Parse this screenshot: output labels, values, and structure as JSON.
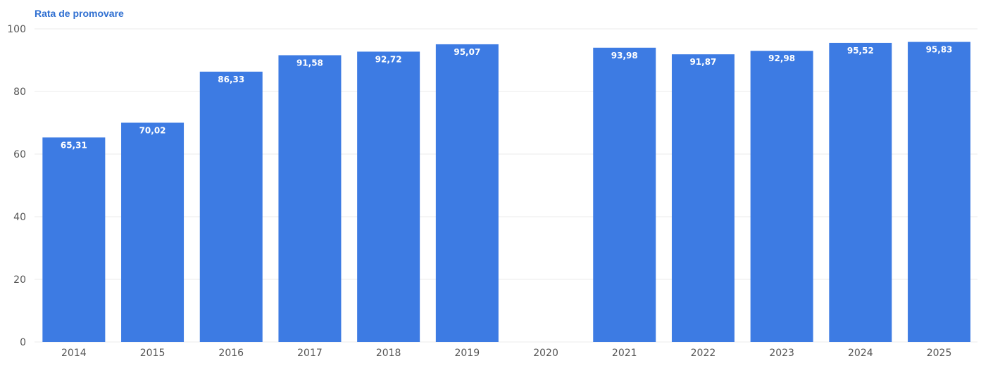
{
  "chart_data": {
    "type": "bar",
    "title": "Rata de promovare",
    "categories": [
      "2014",
      "2015",
      "2016",
      "2017",
      "2018",
      "2019",
      "2020",
      "2021",
      "2022",
      "2023",
      "2024",
      "2025"
    ],
    "values": [
      65.31,
      70.02,
      86.33,
      91.58,
      92.72,
      95.07,
      null,
      93.98,
      91.87,
      92.98,
      95.52,
      95.83
    ],
    "value_labels": [
      "65,31",
      "70,02",
      "86,33",
      "91,58",
      "92,72",
      "95,07",
      "",
      "93,98",
      "91,87",
      "92,98",
      "95,52",
      "95,83"
    ],
    "ylim": [
      0,
      100
    ],
    "yticks": [
      0,
      20,
      40,
      60,
      80,
      100
    ],
    "grid": true,
    "bar_color": "#3d7be3",
    "grid_color": "#ebebeb"
  }
}
